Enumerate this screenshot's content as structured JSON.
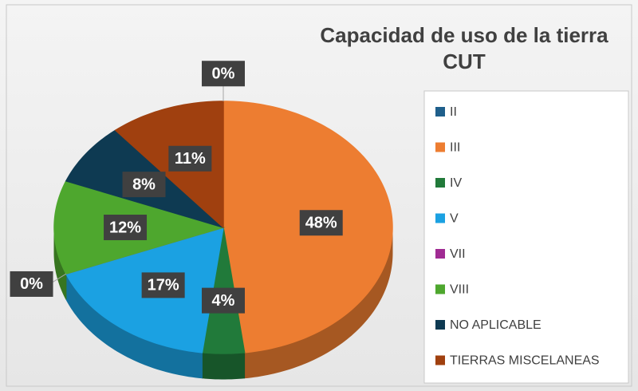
{
  "chart_data": {
    "type": "pie",
    "title": "Capacidad de uso de la tierra CUT",
    "categories": [
      "II",
      "III",
      "IV",
      "V",
      "VII",
      "VIII",
      "NO APLICABLE",
      "TIERRAS MISCELANEAS"
    ],
    "values": [
      0,
      48,
      4,
      17,
      0,
      12,
      8,
      11
    ],
    "value_labels": [
      "0%",
      "48%",
      "4%",
      "17%",
      "0%",
      "12%",
      "8%",
      "11%"
    ],
    "colors": [
      "#1f5f8b",
      "#ed7d31",
      "#217a3a",
      "#1ba1e2",
      "#a02b93",
      "#4ea72e",
      "#0e3a52",
      "#a0400f"
    ],
    "legend": "right"
  }
}
